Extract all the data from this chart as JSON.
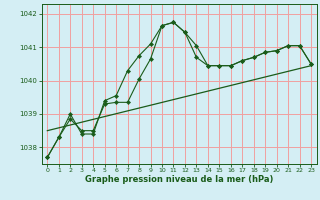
{
  "bg_color": "#d4eef4",
  "grid_color": "#f0a0a0",
  "line_color": "#1a5c1a",
  "xlabel": "Graphe pression niveau de la mer (hPa)",
  "ylim": [
    1037.5,
    1042.3
  ],
  "xlim": [
    -0.5,
    23.5
  ],
  "yticks": [
    1038,
    1039,
    1040,
    1041,
    1042
  ],
  "xticks": [
    0,
    1,
    2,
    3,
    4,
    5,
    6,
    7,
    8,
    9,
    10,
    11,
    12,
    13,
    14,
    15,
    16,
    17,
    18,
    19,
    20,
    21,
    22,
    23
  ],
  "line1_x": [
    0,
    1,
    2,
    3,
    4,
    5,
    6,
    7,
    8,
    9,
    10,
    11,
    12,
    13,
    14,
    15,
    16,
    17,
    18,
    19,
    20,
    21,
    22,
    23
  ],
  "line1_y": [
    1037.7,
    1038.3,
    1038.85,
    1038.5,
    1038.5,
    1039.3,
    1039.35,
    1039.35,
    1040.05,
    1040.65,
    1041.65,
    1041.75,
    1041.45,
    1041.05,
    1040.45,
    1040.45,
    1040.45,
    1040.6,
    1040.7,
    1040.85,
    1040.9,
    1041.05,
    1041.05,
    1040.5
  ],
  "line2_x": [
    0,
    1,
    2,
    3,
    4,
    5,
    6,
    7,
    8,
    9,
    10,
    11,
    12,
    13,
    14,
    15,
    16,
    17,
    18,
    19,
    20,
    21,
    22,
    23
  ],
  "line2_y": [
    1037.7,
    1038.3,
    1039.0,
    1038.4,
    1038.4,
    1039.4,
    1039.55,
    1040.3,
    1040.75,
    1041.1,
    1041.65,
    1041.75,
    1041.45,
    1040.7,
    1040.45,
    1040.45,
    1040.45,
    1040.6,
    1040.7,
    1040.85,
    1040.9,
    1041.05,
    1041.05,
    1040.5
  ],
  "line3_x": [
    0,
    23
  ],
  "line3_y": [
    1038.5,
    1040.45
  ]
}
